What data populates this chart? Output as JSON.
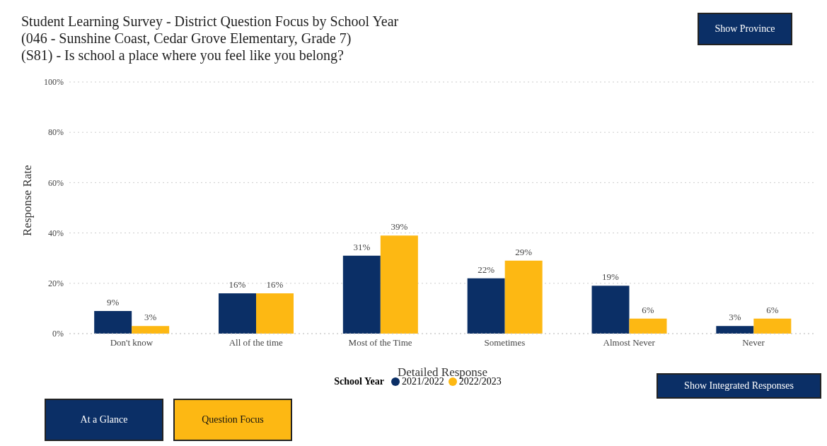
{
  "chart_data": {
    "type": "bar",
    "title": "Student Learning Survey - District Question Focus by School Year",
    "subtitle": "(046 - Sunshine Coast, Cedar Grove Elementary, Grade 7)\n(S81) - Is school a place where you feel like you belong?",
    "xlabel": "Detailed Response",
    "ylabel": "Response Rate",
    "legend_title": "School Year",
    "categories": [
      "Don't know",
      "All of the time",
      "Most of the Time",
      "Sometimes",
      "Almost Never",
      "Never"
    ],
    "series": [
      {
        "name": "2021/2022",
        "color": "#0b2f66",
        "values": [
          9,
          16,
          31,
          22,
          19,
          3
        ],
        "value_labels": [
          "9%",
          "16%",
          "31%",
          "22%",
          "19%",
          "3%"
        ]
      },
      {
        "name": "2022/2023",
        "color": "#fdb813",
        "values": [
          3,
          16,
          39,
          29,
          6,
          6
        ],
        "value_labels": [
          "3%",
          "16%",
          "39%",
          "29%",
          "6%",
          "6%"
        ]
      }
    ],
    "ylim": [
      0,
      100
    ],
    "yticks": [
      {
        "value": 0,
        "label": "0%"
      },
      {
        "value": 20,
        "label": "20%"
      },
      {
        "value": 40,
        "label": "40%"
      },
      {
        "value": 60,
        "label": "60%"
      },
      {
        "value": 80,
        "label": "80%"
      },
      {
        "value": 100,
        "label": "100%"
      }
    ],
    "grid": "y",
    "legend": "bottom",
    "annotations": [
      "Show Province",
      "Show Integrated Responses",
      "At a Glance",
      "Question Focus"
    ]
  }
}
